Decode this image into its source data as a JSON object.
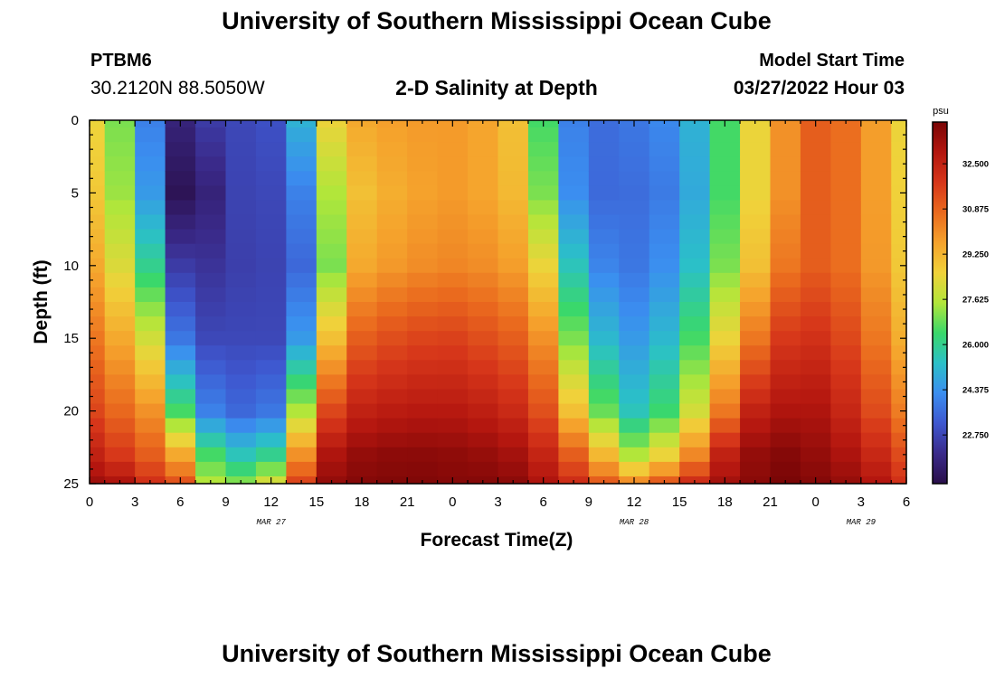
{
  "page": {
    "title": "University of Southern Mississippi Ocean Cube",
    "station_id": "PTBM6",
    "coordinates": "30.2120N  88.5050W",
    "plot_title": "2-D Salinity at Depth",
    "model_start_label": "Model Start Time",
    "model_start_value": "03/27/2022 Hour 03",
    "footer_title": "University of Southern Mississippi Ocean Cube"
  },
  "colors": {
    "scale": [
      "#2a0f4a",
      "#3a2a8a",
      "#3e57cf",
      "#3b8ef0",
      "#2bc0c8",
      "#3ad86a",
      "#b2e63a",
      "#f0d23a",
      "#f5a22c",
      "#ea6a1e",
      "#d6361a",
      "#b3160f",
      "#7a0606"
    ]
  },
  "chart_data": {
    "type": "heatmap",
    "title": "2-D Salinity at Depth",
    "xlabel": "Forecast Time(Z)",
    "ylabel": "Depth (ft)",
    "x_range": [
      0,
      54
    ],
    "y_range": [
      0,
      25
    ],
    "x_ticks": [
      0,
      3,
      6,
      9,
      12,
      15,
      18,
      21,
      24,
      27,
      30,
      33,
      36,
      39,
      42,
      45,
      48,
      51,
      54
    ],
    "x_tick_labels": [
      "0",
      "3",
      "6",
      "9",
      "12",
      "15",
      "18",
      "21",
      "0",
      "3",
      "6",
      "9",
      "12",
      "15",
      "18",
      "21",
      "0",
      "3",
      "6"
    ],
    "y_ticks": [
      0,
      5,
      10,
      15,
      20,
      25
    ],
    "y_tick_labels": [
      "0",
      "5",
      "10",
      "15",
      "20",
      "25"
    ],
    "date_labels": [
      {
        "x": 12,
        "text": "MAR 27"
      },
      {
        "x": 36,
        "text": "MAR 28"
      },
      {
        "x": 51,
        "text": "MAR 29"
      }
    ],
    "colorbar": {
      "unit": "psu",
      "range": [
        21.0,
        34.0
      ],
      "ticks": [
        32.5,
        30.875,
        29.25,
        27.625,
        26.0,
        24.375,
        22.75
      ],
      "tick_labels": [
        "32.500",
        "30.875",
        "29.250",
        "27.625",
        "26.000",
        "24.375",
        "22.750"
      ]
    },
    "grid_depths": [
      0,
      1,
      2,
      3,
      4,
      5,
      6,
      7,
      8,
      9,
      10,
      11,
      12,
      13,
      14,
      15,
      16,
      17,
      18,
      19,
      20,
      21,
      22,
      23,
      24,
      25
    ],
    "grid_hours": [
      0,
      2,
      4,
      6,
      8,
      10,
      12,
      14,
      16,
      18,
      20,
      22,
      24,
      26,
      28,
      30,
      32,
      34,
      36,
      38,
      40,
      42,
      44,
      46,
      48,
      50,
      52,
      54
    ],
    "keyframe_hours": [
      0,
      2,
      4,
      5,
      6,
      7,
      8,
      10,
      12,
      14,
      15,
      16,
      18,
      21,
      24,
      27,
      29,
      30,
      31,
      33,
      36,
      39,
      42,
      44,
      45,
      46,
      48,
      51,
      53,
      54
    ],
    "keyframe_profiles": [
      [
        28.5,
        28.8,
        29.5,
        30.5,
        31.5,
        32.5,
        33.3
      ],
      [
        27.0,
        27.3,
        28.2,
        29.5,
        30.8,
        31.8,
        33.0
      ],
      [
        24.0,
        24.5,
        26.0,
        28.0,
        30.0,
        31.0,
        32.0
      ],
      [
        23.0,
        22.8,
        23.5,
        25.0,
        28.0,
        30.2,
        31.6
      ],
      [
        21.8,
        21.2,
        22.5,
        23.8,
        26.5,
        29.5,
        31.2
      ],
      [
        21.6,
        20.8,
        22.3,
        23.2,
        25.2,
        28.0,
        29.8
      ],
      [
        22.5,
        21.8,
        22.3,
        22.8,
        24.0,
        26.5,
        27.5
      ],
      [
        22.8,
        22.7,
        22.6,
        22.8,
        23.5,
        25.5,
        27.0
      ],
      [
        23.0,
        22.8,
        22.7,
        22.8,
        23.8,
        26.0,
        28.0
      ],
      [
        25.0,
        24.0,
        23.5,
        24.5,
        27.5,
        30.0,
        31.5
      ],
      [
        26.5,
        25.0,
        24.3,
        26.5,
        30.0,
        32.0,
        32.8
      ],
      [
        28.5,
        27.5,
        27.0,
        29.0,
        31.5,
        33.0,
        33.5
      ],
      [
        29.5,
        29.0,
        29.5,
        31.0,
        32.5,
        33.5,
        33.8
      ],
      [
        29.8,
        29.6,
        30.0,
        31.5,
        32.8,
        33.7,
        33.9
      ],
      [
        29.8,
        29.8,
        30.2,
        31.6,
        32.8,
        33.6,
        33.8
      ],
      [
        29.5,
        29.5,
        30.0,
        31.2,
        32.5,
        33.4,
        33.8
      ],
      [
        28.5,
        28.8,
        29.5,
        30.8,
        32.0,
        33.0,
        33.5
      ],
      [
        26.5,
        27.0,
        28.5,
        30.0,
        31.3,
        32.4,
        33.0
      ],
      [
        24.5,
        25.0,
        26.8,
        28.5,
        30.5,
        32.0,
        32.7
      ],
      [
        23.5,
        23.5,
        24.2,
        25.5,
        27.5,
        30.0,
        31.5
      ],
      [
        23.8,
        23.6,
        23.8,
        24.5,
        25.5,
        27.5,
        30.0
      ],
      [
        24.3,
        24.0,
        24.5,
        25.5,
        26.8,
        29.0,
        31.5
      ],
      [
        26.5,
        26.5,
        27.0,
        28.5,
        30.5,
        32.5,
        33.2
      ],
      [
        28.5,
        28.5,
        29.0,
        30.5,
        32.5,
        33.5,
        33.7
      ],
      [
        29.5,
        29.5,
        30.0,
        31.5,
        33.0,
        33.7,
        33.9
      ],
      [
        30.0,
        30.0,
        30.5,
        31.8,
        33.0,
        33.8,
        34.0
      ],
      [
        31.0,
        31.0,
        31.0,
        32.0,
        33.0,
        33.5,
        33.8
      ],
      [
        30.5,
        30.5,
        30.5,
        31.2,
        32.0,
        32.8,
        33.3
      ],
      [
        29.0,
        29.0,
        29.2,
        29.8,
        30.8,
        31.8,
        32.5
      ],
      [
        28.5,
        28.6,
        28.8,
        29.4,
        30.4,
        31.4,
        32.0
      ]
    ],
    "profile_depths": [
      0,
      5,
      10,
      15,
      20,
      23,
      25
    ]
  }
}
